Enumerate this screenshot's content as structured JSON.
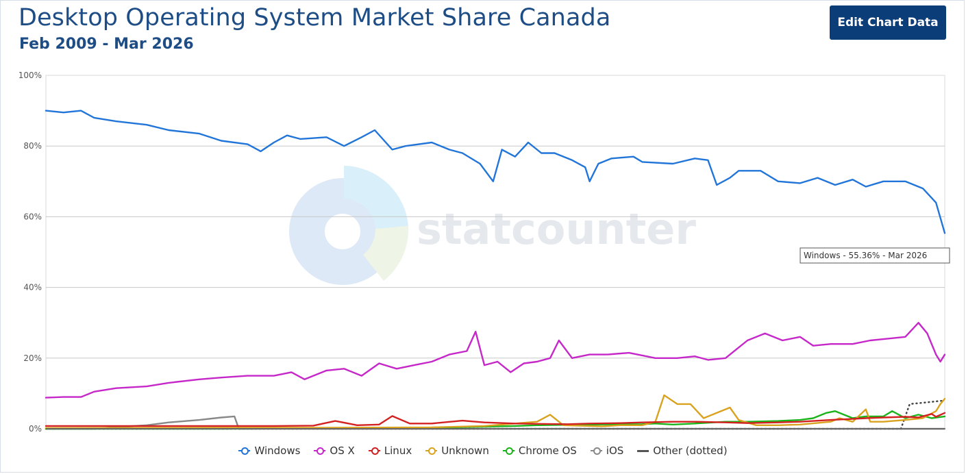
{
  "header": {
    "title": "Desktop Operating System Market Share Canada",
    "subtitle": "Feb 2009 - Mar 2026",
    "edit_button": "Edit Chart Data"
  },
  "watermark": "statcounter",
  "tooltip": "Windows - 55.36% - Mar 2026",
  "chart_data": {
    "type": "line",
    "x_start": "2009-02",
    "x_end": "2026-03",
    "ylim": [
      0,
      100
    ],
    "yticks": [
      "0%",
      "20%",
      "40%",
      "60%",
      "80%",
      "100%"
    ],
    "grid": true,
    "legend_position": "bottom",
    "series": [
      {
        "name": "Windows",
        "color": "#2175d9",
        "style": "solid",
        "points": [
          [
            "2009-02",
            90
          ],
          [
            "2009-06",
            89.5
          ],
          [
            "2009-10",
            90
          ],
          [
            "2010-01",
            88
          ],
          [
            "2010-06",
            87
          ],
          [
            "2011-01",
            86
          ],
          [
            "2011-06",
            84.5
          ],
          [
            "2012-01",
            83.5
          ],
          [
            "2012-06",
            81.5
          ],
          [
            "2012-12",
            80.5
          ],
          [
            "2013-03",
            78.5
          ],
          [
            "2013-06",
            81
          ],
          [
            "2013-09",
            83
          ],
          [
            "2013-12",
            82
          ],
          [
            "2014-06",
            82.5
          ],
          [
            "2014-10",
            80
          ],
          [
            "2015-02",
            82.5
          ],
          [
            "2015-05",
            84.5
          ],
          [
            "2015-09",
            79
          ],
          [
            "2015-12",
            80
          ],
          [
            "2016-06",
            81
          ],
          [
            "2016-10",
            79
          ],
          [
            "2017-01",
            78
          ],
          [
            "2017-05",
            75
          ],
          [
            "2017-08",
            70
          ],
          [
            "2017-10",
            79
          ],
          [
            "2018-01",
            77
          ],
          [
            "2018-04",
            81
          ],
          [
            "2018-07",
            78
          ],
          [
            "2018-10",
            78
          ],
          [
            "2019-02",
            76
          ],
          [
            "2019-05",
            74
          ],
          [
            "2019-06",
            70
          ],
          [
            "2019-08",
            75
          ],
          [
            "2019-11",
            76.5
          ],
          [
            "2020-04",
            77
          ],
          [
            "2020-06",
            75.5
          ],
          [
            "2021-01",
            75
          ],
          [
            "2021-06",
            76.5
          ],
          [
            "2021-09",
            76
          ],
          [
            "2021-11",
            69
          ],
          [
            "2022-02",
            71
          ],
          [
            "2022-04",
            73
          ],
          [
            "2022-09",
            73
          ],
          [
            "2023-01",
            70
          ],
          [
            "2023-06",
            69.5
          ],
          [
            "2023-10",
            71
          ],
          [
            "2024-02",
            69
          ],
          [
            "2024-06",
            70.5
          ],
          [
            "2024-09",
            68.5
          ],
          [
            "2025-01",
            70
          ],
          [
            "2025-06",
            70
          ],
          [
            "2025-10",
            68
          ],
          [
            "2026-01",
            64
          ],
          [
            "2026-03",
            55.36
          ]
        ]
      },
      {
        "name": "OS X",
        "color": "#c527c9",
        "style": "solid",
        "points": [
          [
            "2009-02",
            8.8
          ],
          [
            "2009-06",
            9
          ],
          [
            "2009-10",
            9
          ],
          [
            "2010-01",
            10.5
          ],
          [
            "2010-06",
            11.5
          ],
          [
            "2011-01",
            12
          ],
          [
            "2011-06",
            13
          ],
          [
            "2012-01",
            14
          ],
          [
            "2012-06",
            14.5
          ],
          [
            "2012-12",
            15
          ],
          [
            "2013-06",
            15
          ],
          [
            "2013-10",
            16
          ],
          [
            "2014-01",
            14
          ],
          [
            "2014-06",
            16.5
          ],
          [
            "2014-10",
            17
          ],
          [
            "2015-02",
            15
          ],
          [
            "2015-06",
            18.5
          ],
          [
            "2015-10",
            17
          ],
          [
            "2016-02",
            18
          ],
          [
            "2016-06",
            19
          ],
          [
            "2016-10",
            21
          ],
          [
            "2017-02",
            22
          ],
          [
            "2017-04",
            27.5
          ],
          [
            "2017-06",
            18
          ],
          [
            "2017-09",
            19
          ],
          [
            "2017-12",
            16
          ],
          [
            "2018-03",
            18.5
          ],
          [
            "2018-06",
            19
          ],
          [
            "2018-09",
            20
          ],
          [
            "2018-11",
            25
          ],
          [
            "2019-02",
            20
          ],
          [
            "2019-06",
            21
          ],
          [
            "2019-10",
            21
          ],
          [
            "2020-03",
            21.5
          ],
          [
            "2020-09",
            20
          ],
          [
            "2021-02",
            20
          ],
          [
            "2021-06",
            20.5
          ],
          [
            "2021-09",
            19.5
          ],
          [
            "2022-01",
            20
          ],
          [
            "2022-06",
            25
          ],
          [
            "2022-10",
            27
          ],
          [
            "2023-02",
            25
          ],
          [
            "2023-06",
            26
          ],
          [
            "2023-09",
            23.5
          ],
          [
            "2024-01",
            24
          ],
          [
            "2024-06",
            24
          ],
          [
            "2024-10",
            25
          ],
          [
            "2025-02",
            25.5
          ],
          [
            "2025-06",
            26
          ],
          [
            "2025-09",
            30
          ],
          [
            "2025-11",
            27
          ],
          [
            "2026-01",
            21
          ],
          [
            "2026-02",
            19
          ],
          [
            "2026-03",
            21
          ]
        ]
      },
      {
        "name": "Linux",
        "color": "#d32020",
        "style": "solid",
        "points": [
          [
            "2009-02",
            0.8
          ],
          [
            "2013-06",
            0.8
          ],
          [
            "2014-03",
            0.9
          ],
          [
            "2014-08",
            2.2
          ],
          [
            "2015-01",
            1
          ],
          [
            "2015-06",
            1.2
          ],
          [
            "2015-09",
            3.6
          ],
          [
            "2016-01",
            1.5
          ],
          [
            "2016-06",
            1.5
          ],
          [
            "2017-01",
            2.3
          ],
          [
            "2017-06",
            1.8
          ],
          [
            "2018-01",
            1.5
          ],
          [
            "2018-06",
            1.4
          ],
          [
            "2019-01",
            1.3
          ],
          [
            "2019-06",
            1.5
          ],
          [
            "2020-01",
            1.6
          ],
          [
            "2020-06",
            1.8
          ],
          [
            "2021-01",
            2
          ],
          [
            "2021-06",
            2
          ],
          [
            "2022-01",
            1.8
          ],
          [
            "2022-06",
            1.6
          ],
          [
            "2023-01",
            1.8
          ],
          [
            "2023-06",
            2
          ],
          [
            "2024-01",
            2.5
          ],
          [
            "2024-06",
            2.8
          ],
          [
            "2024-09",
            3
          ],
          [
            "2025-01",
            3.2
          ],
          [
            "2025-06",
            3.4
          ],
          [
            "2025-09",
            3.2
          ],
          [
            "2025-12",
            4.2
          ],
          [
            "2026-01",
            3.4
          ],
          [
            "2026-03",
            4.5
          ]
        ]
      },
      {
        "name": "Unknown",
        "color": "#d9a21f",
        "style": "solid",
        "points": [
          [
            "2009-02",
            0.2
          ],
          [
            "2012-06",
            0.3
          ],
          [
            "2014-06",
            0.3
          ],
          [
            "2016-06",
            0.4
          ],
          [
            "2017-06",
            0.8
          ],
          [
            "2018-01",
            1.5
          ],
          [
            "2018-06",
            2
          ],
          [
            "2018-09",
            4
          ],
          [
            "2018-12",
            1
          ],
          [
            "2019-06",
            0.8
          ],
          [
            "2019-09",
            0.7
          ],
          [
            "2020-01",
            1
          ],
          [
            "2020-06",
            1
          ],
          [
            "2020-09",
            2
          ],
          [
            "2020-11",
            9.5
          ],
          [
            "2021-02",
            7
          ],
          [
            "2021-05",
            7
          ],
          [
            "2021-08",
            3
          ],
          [
            "2021-11",
            4.5
          ],
          [
            "2022-02",
            6
          ],
          [
            "2022-04",
            2.5
          ],
          [
            "2022-08",
            1
          ],
          [
            "2023-01",
            1
          ],
          [
            "2023-06",
            1.2
          ],
          [
            "2024-01",
            2
          ],
          [
            "2024-03",
            3
          ],
          [
            "2024-06",
            2
          ],
          [
            "2024-09",
            5.5
          ],
          [
            "2024-10",
            2
          ],
          [
            "2025-01",
            2
          ],
          [
            "2025-06",
            2.5
          ],
          [
            "2025-10",
            3
          ],
          [
            "2026-01",
            5
          ],
          [
            "2026-02",
            7
          ],
          [
            "2026-03",
            8.5
          ]
        ]
      },
      {
        "name": "Chrome OS",
        "color": "#1ab31a",
        "style": "solid",
        "points": [
          [
            "2009-02",
            0
          ],
          [
            "2012-06",
            0
          ],
          [
            "2014-06",
            0.1
          ],
          [
            "2016-06",
            0.3
          ],
          [
            "2018-01",
            0.8
          ],
          [
            "2018-06",
            1
          ],
          [
            "2019-06",
            1.2
          ],
          [
            "2020-06",
            1.3
          ],
          [
            "2020-09",
            1.5
          ],
          [
            "2021-01",
            1.2
          ],
          [
            "2021-06",
            1.5
          ],
          [
            "2022-01",
            2
          ],
          [
            "2022-06",
            2
          ],
          [
            "2023-01",
            2.2
          ],
          [
            "2023-06",
            2.5
          ],
          [
            "2023-09",
            3
          ],
          [
            "2023-12",
            4.5
          ],
          [
            "2024-02",
            5
          ],
          [
            "2024-06",
            3
          ],
          [
            "2024-09",
            3.5
          ],
          [
            "2025-01",
            3.5
          ],
          [
            "2025-03",
            5
          ],
          [
            "2025-06",
            3
          ],
          [
            "2025-09",
            4
          ],
          [
            "2025-12",
            3
          ],
          [
            "2026-03",
            3.5
          ]
        ]
      },
      {
        "name": "iOS",
        "color": "#888888",
        "style": "solid",
        "points": [
          [
            "2009-02",
            0
          ],
          [
            "2010-01",
            0
          ],
          [
            "2010-06",
            0.5
          ],
          [
            "2011-01",
            1
          ],
          [
            "2011-06",
            1.8
          ],
          [
            "2012-01",
            2.5
          ],
          [
            "2012-06",
            3.2
          ],
          [
            "2012-09",
            3.5
          ],
          [
            "2012-10",
            0
          ],
          [
            "2026-03",
            0
          ]
        ]
      },
      {
        "name": "Other (dotted)",
        "color": "#444444",
        "style": "dotted",
        "points": [
          [
            "2009-02",
            0
          ],
          [
            "2025-05",
            0
          ],
          [
            "2025-07",
            7
          ],
          [
            "2026-03",
            8
          ]
        ]
      }
    ]
  }
}
